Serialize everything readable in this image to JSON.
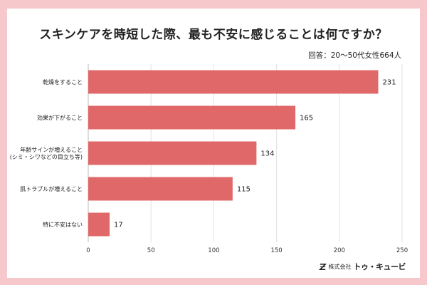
{
  "header": {
    "title": "スキンケアを時短した際、最も不安に感じることは何ですか？",
    "note": "回答：20～50代女性664人"
  },
  "footer": {
    "company_prefix": "株式会社",
    "company_brand": "トゥ・キュービ"
  },
  "colors": {
    "bar": "#e06868",
    "grid": "#e2e2e2",
    "background": "#f7c8cb"
  },
  "chart_data": {
    "type": "bar",
    "orientation": "horizontal",
    "categories": [
      [
        "乾燥をすること"
      ],
      [
        "効果が下がること"
      ],
      [
        "年齢サインが増えること",
        "(シミ・シワなどの目立ち等)"
      ],
      [
        "肌トラブルが増えること"
      ],
      [
        "特に不安はない"
      ]
    ],
    "values": [
      231,
      165,
      134,
      115,
      17
    ],
    "xlim": [
      0,
      250
    ],
    "xticks": [
      0,
      50,
      100,
      150,
      200,
      250
    ],
    "grid": true,
    "data_labels": true
  }
}
